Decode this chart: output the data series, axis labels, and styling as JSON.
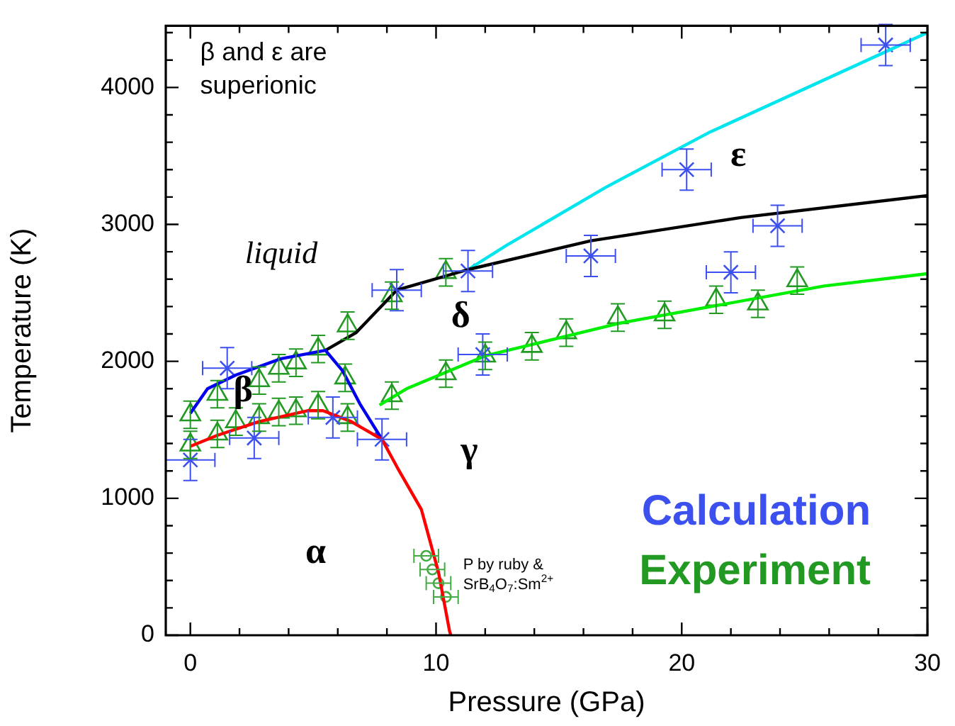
{
  "chart_data": {
    "type": "scatter",
    "xlabel": "Pressure (GPa)",
    "ylabel": "Temperature (K)",
    "xlim": [
      -1,
      30
    ],
    "ylim": [
      0,
      4450
    ],
    "xticks": [
      0,
      {
        "value": 2,
        "label": null
      },
      {
        "value": 4,
        "label": null
      },
      {
        "value": 6,
        "label": null
      },
      {
        "value": 8,
        "label": null
      },
      10,
      {
        "value": 12,
        "label": null
      },
      {
        "value": 14,
        "label": null
      },
      {
        "value": 16,
        "label": null
      },
      {
        "value": 18,
        "label": null
      },
      20,
      {
        "value": 22,
        "label": null
      },
      {
        "value": 24,
        "label": null
      },
      {
        "value": 26,
        "label": null
      },
      {
        "value": 28,
        "label": null
      },
      30
    ],
    "yticks": [
      0,
      {
        "value": 200,
        "label": null
      },
      {
        "value": 400,
        "label": null
      },
      {
        "value": 600,
        "label": null
      },
      {
        "value": 800,
        "label": null
      },
      1000,
      {
        "value": 1200,
        "label": null
      },
      {
        "value": 1400,
        "label": null
      },
      {
        "value": 1600,
        "label": null
      },
      {
        "value": 1800,
        "label": null
      },
      2000,
      {
        "value": 2200,
        "label": null
      },
      {
        "value": 2400,
        "label": null
      },
      {
        "value": 2600,
        "label": null
      },
      {
        "value": 2800,
        "label": null
      },
      3000,
      {
        "value": 3200,
        "label": null
      },
      {
        "value": 3400,
        "label": null
      },
      {
        "value": 3600,
        "label": null
      },
      {
        "value": 3800,
        "label": null
      },
      4000,
      {
        "value": 4200,
        "label": null
      },
      {
        "value": 4400,
        "label": null
      }
    ],
    "grid": false,
    "legend": "bottom right",
    "series": [
      {
        "type": "line",
        "color": "#ff0000",
        "marker": "none",
        "x": [
          0,
          1.1,
          2.8,
          4.8,
          5.4,
          6.55,
          7.8,
          8.5,
          9.4,
          10.1,
          10.55,
          10.6
        ],
        "values": [
          1380,
          1460,
          1560,
          1640,
          1640,
          1560,
          1430,
          1200,
          920,
          460,
          30,
          0
        ]
      },
      {
        "type": "line",
        "color": "#0000ee",
        "marker": "none",
        "x": [
          0,
          0.7,
          1.85,
          3.7,
          5.5,
          6.2,
          6.9,
          7.8
        ],
        "values": [
          1620,
          1800,
          1900,
          2020,
          2080,
          1930,
          1690,
          1430
        ]
      },
      {
        "type": "line",
        "color": "#000000",
        "marker": "none",
        "x": [
          5.5,
          6.75,
          8.4,
          11.3,
          16.3,
          22.4,
          30
        ],
        "values": [
          2080,
          2210,
          2520,
          2670,
          2880,
          3050,
          3210
        ]
      },
      {
        "type": "line",
        "color": "#00e5ee",
        "marker": "none",
        "x": [
          11.3,
          12.9,
          16.9,
          21.1,
          30
        ],
        "values": [
          2670,
          2850,
          3270,
          3670,
          4400
        ]
      },
      {
        "type": "line",
        "color": "#00ee00",
        "marker": "none",
        "x": [
          7.7,
          8.8,
          12.0,
          17.5,
          25.8,
          30
        ],
        "values": [
          1680,
          1800,
          2040,
          2280,
          2550,
          2640
        ]
      },
      {
        "name": "Calculation",
        "color": "#3c50f0",
        "marker": "cross",
        "x": [
          0,
          1.5,
          2.6,
          5.8,
          7.8,
          8.4,
          11.3,
          11.9,
          16.3,
          20.2,
          22.0,
          23.9,
          28.3
        ],
        "values": [
          1280,
          1950,
          1440,
          1590,
          1430,
          2520,
          2660,
          2050,
          2770,
          3400,
          2650,
          2990,
          4310
        ],
        "errors": [
          150,
          150,
          150,
          150,
          150,
          150,
          150,
          150,
          150,
          150,
          150,
          150,
          150
        ],
        "xerrors": [
          1,
          1,
          1,
          1,
          1,
          1,
          1,
          1,
          1,
          1,
          1,
          1,
          1
        ]
      },
      {
        "name": "Experiment",
        "color": "#229922",
        "marker": "triangle",
        "x": [
          0,
          0,
          1.1,
          1.1,
          1.85,
          2.8,
          2.8,
          3.6,
          3.6,
          4.3,
          4.3,
          5.2,
          5.2,
          6.4,
          6.3,
          6.4,
          8.2,
          8.2,
          10.4,
          10.4,
          12.0,
          13.9,
          15.3,
          17.4,
          19.3,
          21.4,
          23.1,
          24.7
        ],
        "values": [
          1610,
          1390,
          1760,
          1470,
          1560,
          1860,
          1590,
          1950,
          1630,
          1990,
          1640,
          2090,
          1680,
          2260,
          1880,
          1590,
          1750,
          2480,
          2650,
          1910,
          2040,
          2110,
          2210,
          2320,
          2340,
          2450,
          2420,
          2590
        ],
        "errors": [
          100,
          100,
          100,
          100,
          100,
          100,
          100,
          100,
          100,
          100,
          100,
          100,
          100,
          100,
          100,
          100,
          100,
          100,
          100,
          100,
          100,
          100,
          100,
          100,
          100,
          100,
          100,
          100
        ]
      },
      {
        "color": "#44aa44",
        "marker": "circle",
        "x": [
          9.6,
          9.85,
          10.1,
          10.4
        ],
        "values": [
          580,
          480,
          380,
          280
        ],
        "xerrors": [
          0.5,
          0.5,
          0.5,
          0.5
        ]
      }
    ],
    "annotations": [
      "β and ε are superionic",
      "liquid",
      "β",
      "δ",
      "γ",
      "α",
      "ε",
      "P by ruby & SrB$_{4}$O$_{7}$:Sm$^{2+}$"
    ]
  }
}
